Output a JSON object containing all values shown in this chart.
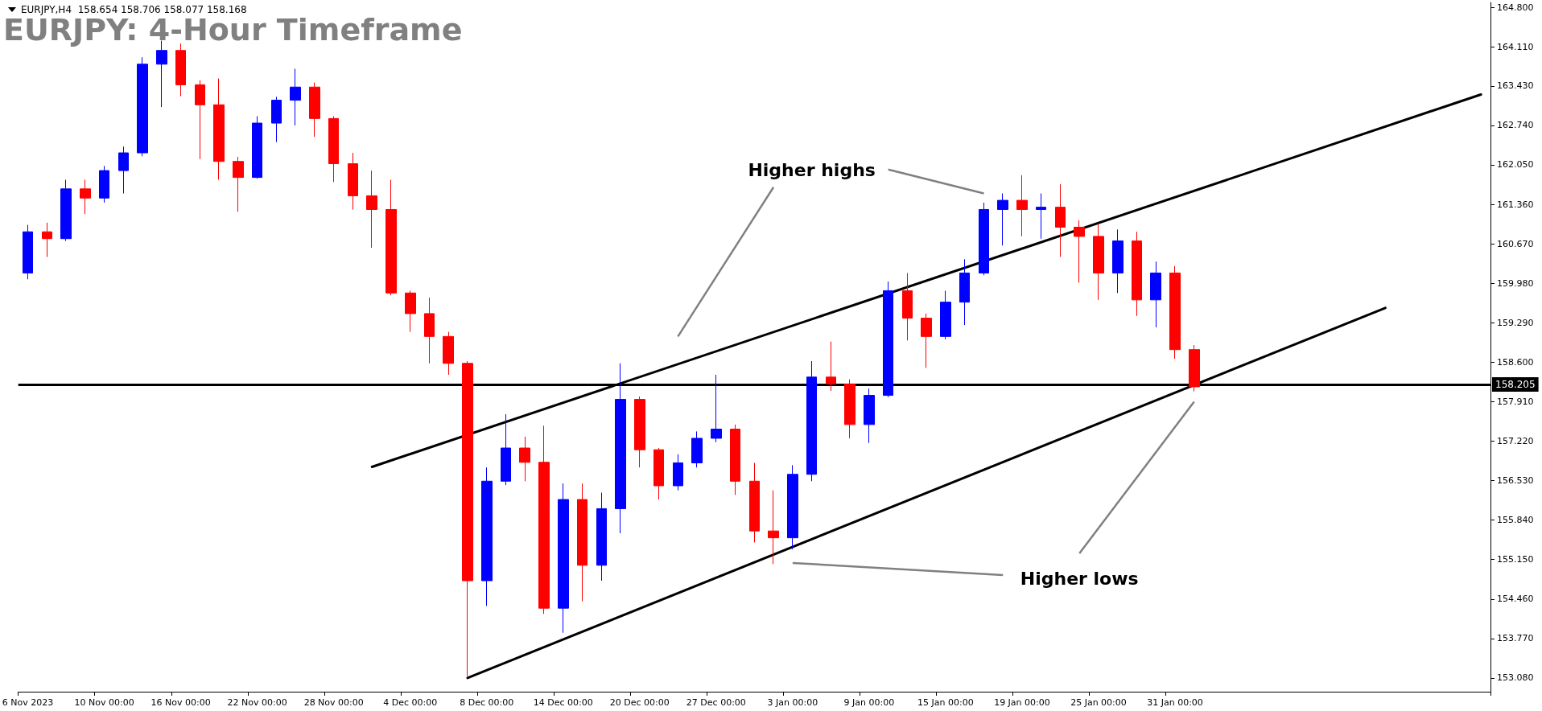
{
  "chart_data": {
    "type": "candlestick",
    "title": "EURJPY: 4-Hour Timeframe",
    "annotations": [
      "EURJPY,H4  158.654 158.706 158.077 158.168",
      "Higher highs",
      "Higher lows"
    ],
    "categories": [
      "6 Nov 2023",
      null,
      null,
      null,
      "10 Nov 00:00",
      null,
      null,
      null,
      "16 Nov 00:00",
      null,
      null,
      null,
      "22 Nov 00:00",
      null,
      null,
      null,
      "28 Nov 00:00",
      null,
      null,
      null,
      "4 Dec 00:00",
      null,
      null,
      null,
      "8 Dec 00:00",
      null,
      null,
      null,
      "14 Dec 00:00",
      null,
      null,
      null,
      "20 Dec 00:00",
      null,
      null,
      null,
      "27 Dec 00:00",
      null,
      null,
      null,
      "3 Jan 00:00",
      null,
      null,
      null,
      "9 Jan 00:00",
      null,
      null,
      null,
      "15 Jan 00:00",
      null,
      null,
      null,
      "19 Jan 00:00",
      null,
      null,
      null,
      "25 Jan 00:00",
      null,
      null,
      null,
      "31 Jan 00:00",
      null,
      null,
      null,
      null,
      null,
      null,
      null,
      null,
      null,
      null,
      null,
      null,
      null,
      null,
      null,
      null
    ],
    "series": [
      {
        "ohlc": [
          [
            160.16,
            161.0,
            160.05,
            160.88
          ],
          [
            160.88,
            161.04,
            160.44,
            160.76
          ],
          [
            160.76,
            161.79,
            160.72,
            161.63
          ],
          [
            161.63,
            161.79,
            161.19,
            161.47
          ],
          [
            161.47,
            162.03,
            161.39,
            161.95
          ],
          [
            161.95,
            162.37,
            161.55,
            162.26
          ],
          [
            162.26,
            163.93,
            162.2,
            163.81
          ],
          [
            163.81,
            164.22,
            163.06,
            164.05
          ],
          [
            164.05,
            164.17,
            163.25,
            163.45
          ],
          [
            163.45,
            163.53,
            162.15,
            163.1
          ],
          [
            163.1,
            163.56,
            161.79,
            162.11
          ],
          [
            162.11,
            162.19,
            161.23,
            161.83
          ],
          [
            161.83,
            162.9,
            161.81,
            162.78
          ],
          [
            162.78,
            163.24,
            162.45,
            163.18
          ],
          [
            163.18,
            163.73,
            162.74,
            163.41
          ],
          [
            163.41,
            163.49,
            162.54,
            162.86
          ],
          [
            162.86,
            162.9,
            161.75,
            162.07
          ],
          [
            162.07,
            162.26,
            161.27,
            161.51
          ],
          [
            161.51,
            161.95,
            160.6,
            161.27
          ],
          [
            161.27,
            161.79,
            159.77,
            159.81
          ],
          [
            159.81,
            159.85,
            159.13,
            159.45
          ],
          [
            159.45,
            159.73,
            158.58,
            159.05
          ],
          [
            159.05,
            159.13,
            158.38,
            158.58
          ],
          [
            158.58,
            158.62,
            153.11,
            154.78
          ],
          [
            154.78,
            156.76,
            154.34,
            156.52
          ],
          [
            156.52,
            157.69,
            156.45,
            157.1
          ],
          [
            157.1,
            157.3,
            156.52,
            156.85
          ],
          [
            156.85,
            157.49,
            154.2,
            154.3
          ],
          [
            154.3,
            156.48,
            153.87,
            156.2
          ],
          [
            156.2,
            156.48,
            154.42,
            155.05
          ],
          [
            155.05,
            156.32,
            154.78,
            156.04
          ],
          [
            156.04,
            158.58,
            155.61,
            157.95
          ],
          [
            157.95,
            158.0,
            156.76,
            157.07
          ],
          [
            157.07,
            157.1,
            156.2,
            156.44
          ],
          [
            156.44,
            156.99,
            156.36,
            156.84
          ],
          [
            156.84,
            157.39,
            156.76,
            157.27
          ],
          [
            157.27,
            158.38,
            157.2,
            157.43
          ],
          [
            157.43,
            157.51,
            156.28,
            156.52
          ],
          [
            156.52,
            156.84,
            155.45,
            155.65
          ],
          [
            155.65,
            156.36,
            155.07,
            155.53
          ],
          [
            155.53,
            156.8,
            155.33,
            156.64
          ],
          [
            156.64,
            158.62,
            156.52,
            158.34
          ],
          [
            158.34,
            158.96,
            158.1,
            158.22
          ],
          [
            158.22,
            158.3,
            157.27,
            157.51
          ],
          [
            157.51,
            158.14,
            157.19,
            158.02
          ],
          [
            158.02,
            160.01,
            157.99,
            159.85
          ],
          [
            159.85,
            160.16,
            158.98,
            159.37
          ],
          [
            159.37,
            159.45,
            158.5,
            159.05
          ],
          [
            159.05,
            159.85,
            159.0,
            159.65
          ],
          [
            159.65,
            160.4,
            159.25,
            160.16
          ],
          [
            160.16,
            161.39,
            160.12,
            161.27
          ],
          [
            161.27,
            161.55,
            160.64,
            161.43
          ],
          [
            161.43,
            161.87,
            160.8,
            161.27
          ],
          [
            161.27,
            161.55,
            160.76,
            161.31
          ],
          [
            161.31,
            161.71,
            160.44,
            160.96
          ],
          [
            160.96,
            161.08,
            159.99,
            160.8
          ],
          [
            160.8,
            161.02,
            159.69,
            160.16
          ],
          [
            160.16,
            160.92,
            159.81,
            160.72
          ],
          [
            160.72,
            160.88,
            159.41,
            159.69
          ],
          [
            159.69,
            160.36,
            159.21,
            160.16
          ],
          [
            160.16,
            160.28,
            158.66,
            158.82
          ],
          [
            158.82,
            158.9,
            158.09,
            158.17
          ],
          null,
          null,
          null,
          null,
          null,
          null,
          null,
          null,
          null,
          null,
          null,
          null,
          null,
          null,
          null
        ],
        "colors": [
          "#0000ff",
          "#ff0000",
          "#0000ff",
          "#ff0000",
          "#0000ff",
          "#0000ff",
          "#0000ff",
          "#0000ff",
          "#ff0000",
          "#ff0000",
          "#ff0000",
          "#ff0000",
          "#0000ff",
          "#0000ff",
          "#0000ff",
          "#ff0000",
          "#ff0000",
          "#ff0000",
          "#ff0000",
          "#ff0000",
          "#ff0000",
          "#ff0000",
          "#ff0000",
          "#ff0000",
          "#0000ff",
          "#0000ff",
          "#ff0000",
          "#ff0000",
          "#0000ff",
          "#ff0000",
          "#0000ff",
          "#0000ff",
          "#ff0000",
          "#ff0000",
          "#0000ff",
          "#0000ff",
          "#0000ff",
          "#ff0000",
          "#ff0000",
          "#ff0000",
          "#0000ff",
          "#0000ff",
          "#ff0000",
          "#ff0000",
          "#0000ff",
          "#0000ff",
          "#ff0000",
          "#ff0000",
          "#0000ff",
          "#0000ff",
          "#0000ff",
          "#0000ff",
          "#ff0000",
          "#0000ff",
          "#ff0000",
          "#ff0000",
          "#ff0000",
          "#0000ff",
          "#ff0000",
          "#0000ff",
          "#ff0000",
          "#ff0000",
          null,
          null,
          null,
          null,
          null,
          null,
          null,
          null,
          null,
          null,
          null,
          null,
          null,
          null,
          null
        ]
      },
      {
        "type": "line",
        "color": "#000000",
        "values": [
          null,
          null,
          null,
          null,
          null,
          null,
          null,
          null,
          null,
          null,
          null,
          null,
          null,
          null,
          null,
          null,
          null,
          null,
          156.77,
          null,
          null,
          null,
          null,
          null,
          null,
          null,
          null,
          null,
          null,
          null,
          null,
          null,
          null,
          null,
          null,
          null,
          null,
          null,
          null,
          null,
          null,
          null,
          null,
          null,
          null,
          null,
          null,
          null,
          null,
          null,
          null,
          null,
          null,
          null,
          null,
          null,
          null,
          null,
          null,
          null,
          null,
          null,
          null,
          null,
          null,
          null,
          null,
          null,
          null,
          null,
          null,
          null,
          null,
          null,
          null,
          null,
          163.28
        ]
      },
      {
        "type": "line",
        "color": "#000000",
        "values": [
          null,
          null,
          null,
          null,
          null,
          null,
          null,
          null,
          null,
          null,
          null,
          null,
          null,
          null,
          null,
          null,
          null,
          null,
          null,
          null,
          null,
          null,
          null,
          153.08,
          null,
          null,
          null,
          null,
          null,
          null,
          null,
          null,
          null,
          null,
          null,
          null,
          null,
          null,
          null,
          null,
          null,
          null,
          null,
          null,
          null,
          null,
          null,
          null,
          null,
          null,
          null,
          null,
          null,
          null,
          null,
          null,
          null,
          null,
          null,
          null,
          null,
          null,
          null,
          null,
          null,
          null,
          null,
          null,
          null,
          null,
          null,
          159.55,
          null,
          null,
          null,
          null,
          null
        ]
      }
    ],
    "ref_lines": [
      {
        "axis": "y",
        "value": 158.205,
        "label": "158.205",
        "color": "#000000"
      }
    ],
    "ylim": [
      152.84,
      164.89
    ],
    "yticks": [
      {
        "value": 164.8,
        "label": "164.800"
      },
      {
        "value": 164.11,
        "label": "164.110"
      },
      {
        "value": 163.43,
        "label": "163.430"
      },
      {
        "value": 162.74,
        "label": "162.740"
      },
      {
        "value": 162.05,
        "label": "162.050"
      },
      {
        "value": 161.36,
        "label": "161.360"
      },
      {
        "value": 160.67,
        "label": "160.670"
      },
      {
        "value": 159.98,
        "label": "159.980"
      },
      {
        "value": 159.29,
        "label": "159.290"
      },
      {
        "value": 158.6,
        "label": "158.600"
      },
      {
        "value": 157.91,
        "label": "157.910"
      },
      {
        "value": 157.22,
        "label": "157.220"
      },
      {
        "value": 156.53,
        "label": "156.530"
      },
      {
        "value": 155.84,
        "label": "155.840"
      },
      {
        "value": 155.15,
        "label": "155.150"
      },
      {
        "value": 154.46,
        "label": "154.460"
      },
      {
        "value": 153.77,
        "label": "153.770"
      },
      {
        "value": 153.08,
        "label": "153.080"
      }
    ],
    "grid": false,
    "marker": "none",
    "line_style": "solid"
  }
}
